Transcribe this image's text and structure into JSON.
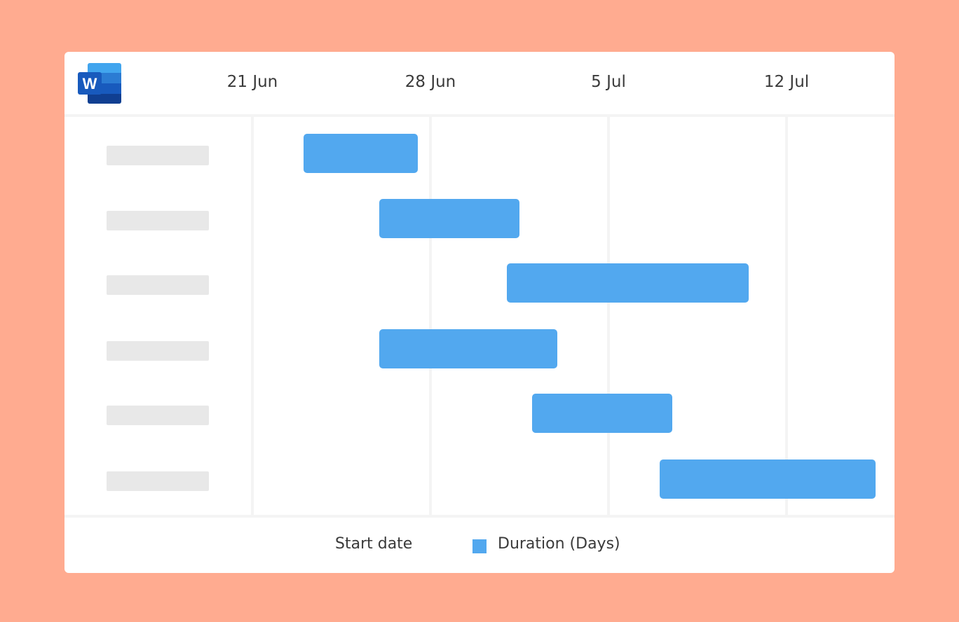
{
  "colors": {
    "background": "#ffab90",
    "bar": "#52a8ef"
  },
  "logo": {
    "icon": "microsoft-word-icon",
    "letter": "W"
  },
  "chart_data": {
    "type": "gantt",
    "x_ticks": [
      "21 Jun",
      "28 Jun",
      "5 Jul",
      "12 Jul"
    ],
    "grid": true,
    "legend": {
      "placement": "bottom",
      "entries": [
        "Start date",
        "Duration (Days)"
      ]
    },
    "tasks": [
      {
        "label": "",
        "start": "23 Jun",
        "duration": 4.5
      },
      {
        "label": "",
        "start": "26 Jun",
        "duration": 5.5
      },
      {
        "label": "",
        "start": "1 Jul",
        "duration": 9.5
      },
      {
        "label": "",
        "start": "26 Jun",
        "duration": 7
      },
      {
        "label": "",
        "start": "2 Jul",
        "duration": 5.5
      },
      {
        "label": "",
        "start": "7 Jul",
        "duration": 8.5
      }
    ]
  }
}
